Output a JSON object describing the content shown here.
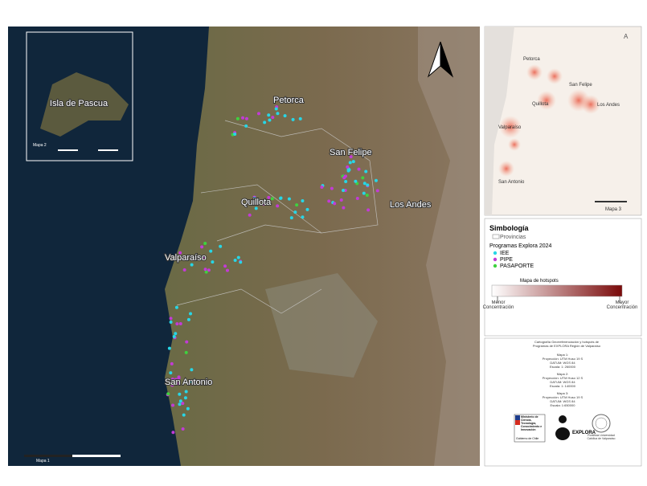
{
  "main_map": {
    "labels": [
      "Petorca",
      "San Felipe",
      "Quillota",
      "Los Andes",
      "Valparaíso",
      "San Antonio"
    ],
    "map_label": "Mapa 1"
  },
  "inset_map": {
    "label": "Isla de Pascua",
    "map_label": "Mapa 2"
  },
  "hotspot_map": {
    "labels": [
      "Petorca",
      "San Felipe",
      "Quillota",
      "Los Andes",
      "Valparaíso",
      "San Antonio"
    ],
    "map_label": "Mapa 3"
  },
  "legend": {
    "title": "Simbología",
    "provinces": "Provincias",
    "programs_title": "Programas Explora 2024",
    "programs": [
      {
        "name": "IEE",
        "color": "#27d6e6"
      },
      {
        "name": "PIPE",
        "color": "#c23bd6"
      },
      {
        "name": "PASAPORTE",
        "color": "#3fd13f"
      }
    ],
    "hotspot_title": "Mapa de hotspots",
    "low": "Menor Concentración",
    "high": "Mayor Concentración"
  },
  "info": {
    "title": "Cartografía Georreferenciación y hotspots de Programas de EXPLORA Región de Valparaíso",
    "maps": [
      {
        "name": "Mapa 1:",
        "projection": "Proyección: UTM Huso 19 S",
        "datum": "DATUM: WGS 84",
        "scale": "Escala: 1: 260000"
      },
      {
        "name": "Mapa 2:",
        "projection": "Proyección: UTM Huso 12 S",
        "datum": "DATUM: WGS 84",
        "scale": "Escala: 1: 140000"
      },
      {
        "name": "Mapa 3:",
        "projection": "Proyección: UTM Huso 19 S",
        "datum": "DATUM: WGS 84",
        "scale": "Escala: 1:650000"
      }
    ],
    "logos": {
      "ministry": "Ministerio de Ciencia, Tecnología, Conocimiento e Innovación",
      "government": "Gobierno de Chile",
      "explora": "EXPLORA",
      "university": "Pontificia Universidad Católica de Valparaíso"
    }
  }
}
